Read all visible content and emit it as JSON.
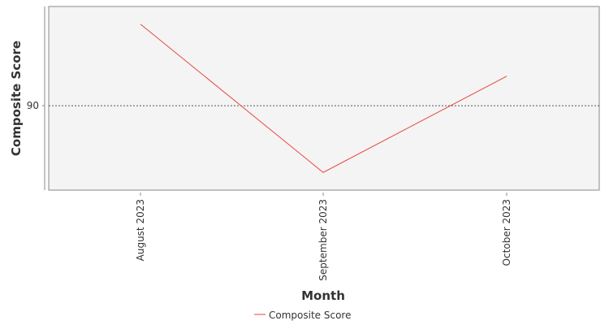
{
  "chart_data": {
    "type": "line",
    "title": "",
    "xlabel": "Month",
    "ylabel": "Composite Score",
    "categories": [
      "August 2023",
      "September 2023",
      "October 2023"
    ],
    "series": [
      {
        "name": "Composite Score",
        "color": "#e8473f",
        "values": [
          98.3,
          83.2,
          93.0
        ]
      }
    ],
    "ylim": [
      81.4,
      100.1
    ],
    "yticks": [
      90
    ],
    "reference_line": {
      "value": 90,
      "style": "dotted",
      "color": "#555555"
    },
    "grid": false,
    "legend_position": "bottom-center",
    "plot_background": "#f4f4f4"
  }
}
